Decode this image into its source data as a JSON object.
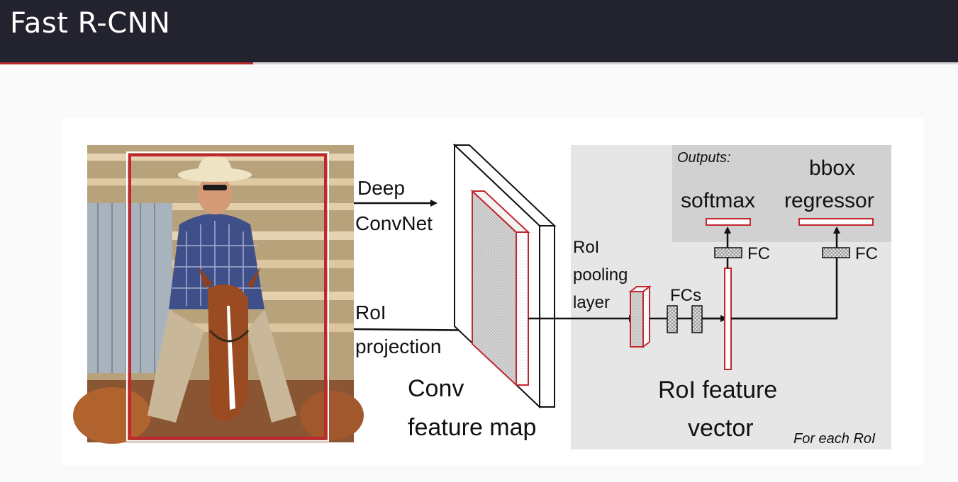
{
  "slide": {
    "title": "Fast R-CNN"
  },
  "diagram": {
    "input_image": {
      "name": "photo-cowboy-on-horse"
    },
    "arrow_labels": {
      "deep_line1": "Deep",
      "deep_line2": "ConvNet",
      "roi_line1": "RoI",
      "roi_line2": "projection"
    },
    "feature_map": {
      "line1": "Conv",
      "line2": "feature map"
    },
    "pooling": {
      "line1": "RoI",
      "line2": "pooling",
      "line3": "layer"
    },
    "fcs_label": "FCs",
    "fc_label": "FC",
    "feature_vector": {
      "line1": "RoI feature",
      "line2": "vector"
    },
    "outputs": {
      "caption": "Outputs:",
      "softmax": "softmax",
      "bbox_line1": "bbox",
      "bbox_line2": "regressor"
    },
    "per_roi": "For each RoI",
    "colors": {
      "accent_red": "#c2262e",
      "panel_grey": "#e6e6e6",
      "outputs_grey": "#d1d1d1"
    }
  }
}
